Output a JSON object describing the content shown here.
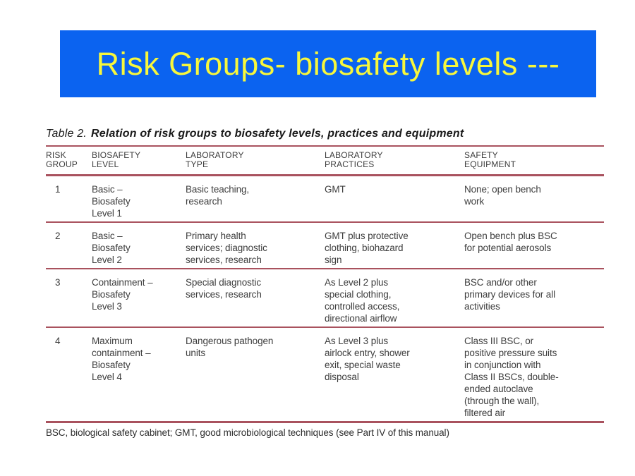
{
  "colors": {
    "banner-bg": "#0b63f0",
    "banner-text": "#f7f73c",
    "rule": "#a9525e",
    "body-text": "#3d3d3d"
  },
  "slide": {
    "title": "Risk Groups- biosafety levels ---"
  },
  "table": {
    "caption_prefix": "Table 2.",
    "caption_text": "Relation of risk groups to biosafety levels, practices and equipment",
    "columns": [
      [
        "RISK",
        "GROUP"
      ],
      [
        "BIOSAFETY",
        "LEVEL"
      ],
      [
        "LABORATORY",
        "TYPE"
      ],
      [
        "LABORATORY",
        "PRACTICES"
      ],
      [
        "SAFETY",
        "EQUIPMENT"
      ]
    ],
    "rows": [
      {
        "risk_group": "1",
        "biosafety_level": [
          "Basic –",
          "Biosafety",
          "Level 1"
        ],
        "laboratory_type": [
          "Basic teaching,",
          "research"
        ],
        "laboratory_practices": [
          "GMT"
        ],
        "safety_equipment": [
          "None; open bench",
          "work"
        ]
      },
      {
        "risk_group": "2",
        "biosafety_level": [
          "Basic –",
          "Biosafety",
          "Level 2"
        ],
        "laboratory_type": [
          "Primary health",
          "services; diagnostic",
          "services, research"
        ],
        "laboratory_practices": [
          "GMT plus protective",
          "clothing, biohazard",
          "sign"
        ],
        "safety_equipment": [
          "Open bench plus BSC",
          "for potential aerosols"
        ]
      },
      {
        "risk_group": "3",
        "biosafety_level": [
          "Containment –",
          "Biosafety",
          "Level 3"
        ],
        "laboratory_type": [
          "Special diagnostic",
          "services, research"
        ],
        "laboratory_practices": [
          "As Level 2 plus",
          "special clothing,",
          "controlled access,",
          "directional airflow"
        ],
        "safety_equipment": [
          "BSC and/or other",
          "primary devices for all",
          "activities"
        ]
      },
      {
        "risk_group": "4",
        "biosafety_level": [
          "Maximum",
          "containment –",
          "Biosafety",
          "Level 4"
        ],
        "laboratory_type": [
          "Dangerous pathogen",
          "units"
        ],
        "laboratory_practices": [
          "As Level 3 plus",
          "airlock entry, shower",
          "exit, special waste",
          "disposal"
        ],
        "safety_equipment": [
          "Class III BSC, or",
          "positive pressure suits",
          "in conjunction with",
          "Class II BSCs, double-",
          "ended autoclave",
          "(through the wall),",
          "filtered air"
        ]
      }
    ],
    "footnote": "BSC, biological safety cabinet; GMT, good microbiological techniques (see Part IV of this manual)"
  }
}
